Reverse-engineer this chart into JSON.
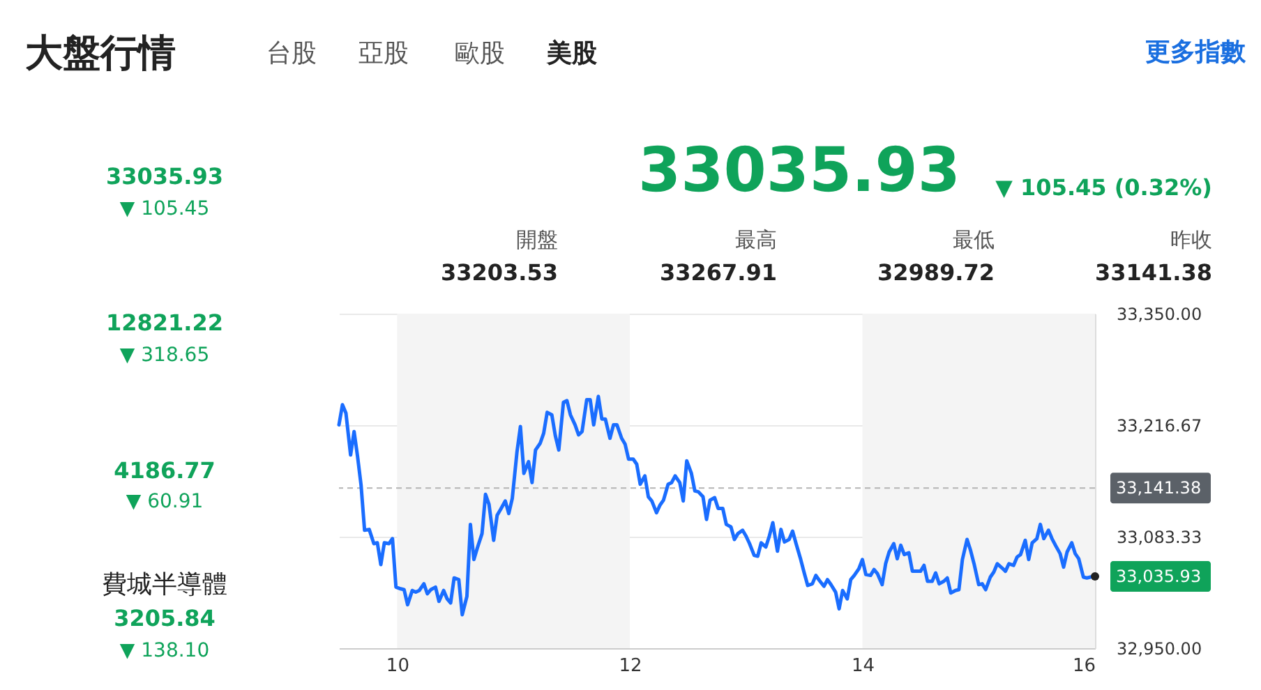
{
  "chart_data": [
    {
      "type": "other",
      "title": "大盤行情",
      "annotations": [
        "台股",
        "亞股",
        "歐股",
        "美股",
        "更多指數",
        "33035.93",
        "▼ 105.45",
        "12821.22",
        "▼ 318.65",
        "4186.77",
        "▼ 60.91",
        "費城半導體",
        "3205.84",
        "▼ 138.10",
        "33035.93",
        "▼ 105.45 (0.32%)",
        "開盤",
        "33203.53",
        "最高",
        "33267.91",
        "最低",
        "32989.72",
        "昨收",
        "33141.38"
      ]
    },
    {
      "type": "line",
      "x": [
        9.5,
        9.53,
        9.56,
        9.6,
        9.63,
        9.66,
        9.69,
        9.72,
        9.76,
        9.8,
        9.83,
        9.86,
        9.89,
        9.93,
        9.96,
        9.99,
        10.03,
        10.06,
        10.09,
        10.13,
        10.16,
        10.19,
        10.23,
        10.26,
        10.29,
        10.33,
        10.36,
        10.4,
        10.43,
        10.46,
        10.49,
        10.53,
        10.56,
        10.6,
        10.63,
        10.66,
        10.69,
        10.73,
        10.76,
        10.79,
        10.83,
        10.86,
        10.89,
        10.93,
        10.96,
        10.99,
        11.03,
        11.06,
        11.09,
        11.13,
        11.16,
        11.19,
        11.23,
        11.26,
        11.29,
        11.33,
        11.36,
        11.39,
        11.43,
        11.46,
        11.49,
        11.53,
        11.56,
        11.59,
        11.63,
        11.66,
        11.69,
        11.73,
        11.76,
        11.79,
        11.83,
        11.86,
        11.89,
        11.93,
        11.96,
        11.99,
        12.03,
        12.06,
        12.09,
        12.13,
        12.16,
        12.19,
        12.23,
        12.26,
        12.29,
        12.33,
        12.36,
        12.39,
        12.43,
        12.46,
        12.49,
        12.53,
        12.56,
        12.59,
        12.63,
        12.66,
        12.69,
        12.73,
        12.76,
        12.8,
        12.83,
        12.87,
        12.9,
        12.93,
        12.97,
        13.0,
        13.03,
        13.07,
        13.1,
        13.13,
        13.17,
        13.2,
        13.23,
        13.27,
        13.3,
        13.33,
        13.37,
        13.4,
        13.43,
        13.47,
        13.5,
        13.53,
        13.57,
        13.6,
        13.63,
        13.67,
        13.7,
        13.73,
        13.77,
        13.8,
        13.83,
        13.87,
        13.9,
        13.93,
        13.97,
        14.0,
        14.03,
        14.07,
        14.1,
        14.13,
        14.17,
        14.2,
        14.23,
        14.27,
        14.3,
        14.33,
        14.36,
        14.4,
        14.43,
        14.46,
        14.5,
        14.53,
        14.56,
        14.6,
        14.63,
        14.66,
        14.7,
        14.73,
        14.76,
        14.8,
        14.83,
        14.86,
        14.9,
        14.93,
        14.96,
        15.0,
        15.03,
        15.06,
        15.1,
        15.13,
        15.16,
        15.2,
        15.23,
        15.26,
        15.3,
        15.33,
        15.36,
        15.4,
        15.43,
        15.46,
        15.5,
        15.53,
        15.56,
        15.6,
        15.63,
        15.66,
        15.7,
        15.73,
        15.76,
        15.8,
        15.83,
        15.86,
        15.9,
        15.93,
        15.96,
        16.0
      ],
      "series": [
        {
          "color": "#1a6dff",
          "values": [
            33217,
            33241,
            33231,
            33181,
            33209,
            33179,
            33145,
            33091,
            33092,
            33075,
            33076,
            33050,
            33076,
            33075,
            33081,
            33023,
            33021,
            33020,
            33002,
            33019,
            33017,
            33019,
            33027,
            33015,
            33020,
            33023,
            33006,
            33019,
            33009,
            33004,
            33034,
            33032,
            32990,
            33012,
            33098,
            33056,
            33070,
            33087,
            33134,
            33122,
            33079,
            33109,
            33116,
            33126,
            33111,
            33129,
            33184,
            33215,
            33159,
            33173,
            33148,
            33187,
            33195,
            33207,
            33232,
            33229,
            33204,
            33187,
            33244,
            33246,
            33229,
            33217,
            33205,
            33209,
            33247,
            33247,
            33217,
            33251,
            33224,
            33224,
            33201,
            33217,
            33217,
            33201,
            33194,
            33176,
            33176,
            33170,
            33146,
            33156,
            33131,
            33126,
            33112,
            33121,
            33127,
            33146,
            33148,
            33156,
            33148,
            33126,
            33174,
            33159,
            33138,
            33137,
            33131,
            33104,
            33127,
            33130,
            33117,
            33117,
            33098,
            33095,
            33080,
            33087,
            33091,
            33084,
            33075,
            33061,
            33060,
            33076,
            33071,
            33084,
            33100,
            33066,
            33092,
            33077,
            33080,
            33090,
            33075,
            33056,
            33040,
            33025,
            33027,
            33037,
            33031,
            33024,
            33032,
            33026,
            33017,
            32997,
            33019,
            33009,
            33032,
            33037,
            33045,
            33056,
            33038,
            33037,
            33044,
            33039,
            33026,
            33051,
            33065,
            33075,
            33057,
            33073,
            33062,
            33064,
            33042,
            33042,
            33042,
            33049,
            33030,
            33030,
            33040,
            33027,
            33030,
            33034,
            33016,
            33019,
            33020,
            33056,
            33080,
            33067,
            33051,
            33026,
            33027,
            33020,
            33035,
            33041,
            33051,
            33046,
            33042,
            33051,
            33049,
            33059,
            33062,
            33079,
            33056,
            33076,
            33081,
            33098,
            33081,
            33091,
            33081,
            33073,
            33063,
            33047,
            33065,
            33076,
            33063,
            33057,
            33035,
            33034,
            33035,
            33035.93
          ]
        }
      ],
      "xlim": [
        9.5,
        16
      ],
      "xticks": [
        10,
        12,
        14,
        16
      ],
      "ylim": [
        32950,
        33350
      ],
      "yticks": [
        {
          "value": 33350,
          "label": "33,350.00"
        },
        {
          "value": 33216.67,
          "label": "33,216.67"
        },
        {
          "value": 33083.33,
          "label": "33,083.33"
        },
        {
          "value": 32950,
          "label": "32,950.00"
        }
      ],
      "grid": "y",
      "bands": [
        {
          "axis": "x",
          "from": 10,
          "to": 12,
          "color": "#f4f4f4"
        },
        {
          "axis": "x",
          "from": 14,
          "to": 16,
          "color": "#f4f4f4"
        }
      ],
      "ref_lines": [
        {
          "axis": "y",
          "value": 33141.38,
          "label": "33,141.38",
          "color": "#b4b4b4",
          "line_style": "dashed"
        }
      ],
      "annotations": [
        {
          "text": "33,035.93",
          "x": 16,
          "y": 33035.93
        }
      ]
    }
  ]
}
